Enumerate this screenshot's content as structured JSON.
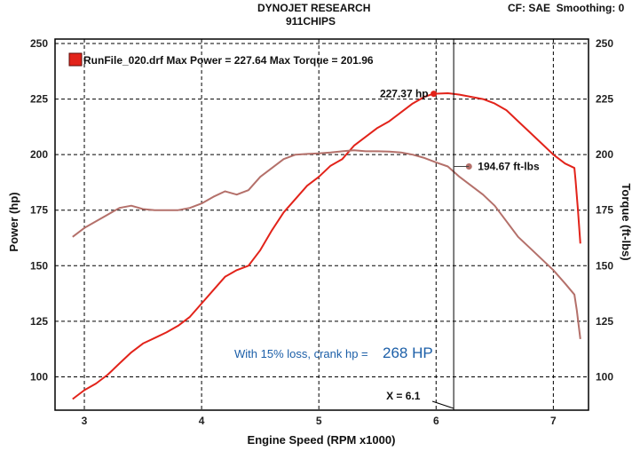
{
  "header": {
    "title": "DYNOJET RESEARCH",
    "subtitle": "911CHIPS",
    "settings": "CF: SAE  Smoothing: 0"
  },
  "chart_data": {
    "type": "line",
    "xlabel": "Engine Speed (RPM x1000)",
    "ylabel_left": "Power (hp)",
    "ylabel_right": "Torque (ft-lbs)",
    "xlim": [
      2.75,
      7.3
    ],
    "ylim": [
      85,
      252
    ],
    "x_ticks": [
      3,
      4,
      5,
      6,
      7
    ],
    "y_ticks": [
      100,
      125,
      150,
      175,
      200,
      225,
      250
    ],
    "grid": true,
    "legend": {
      "position": "top-left",
      "color": "#e2231a",
      "text": "RunFile_020.drf Max Power = 227.64 Max Torque = 201.96"
    },
    "series": [
      {
        "id": "power",
        "axis": "left",
        "color": "#e2231a",
        "points": [
          [
            2.9,
            90
          ],
          [
            3.0,
            94
          ],
          [
            3.1,
            97
          ],
          [
            3.2,
            101
          ],
          [
            3.3,
            106
          ],
          [
            3.4,
            111
          ],
          [
            3.5,
            115
          ],
          [
            3.6,
            117.5
          ],
          [
            3.7,
            120
          ],
          [
            3.8,
            123
          ],
          [
            3.9,
            127
          ],
          [
            4.0,
            133
          ],
          [
            4.1,
            139
          ],
          [
            4.2,
            145
          ],
          [
            4.3,
            148
          ],
          [
            4.4,
            150
          ],
          [
            4.5,
            157
          ],
          [
            4.6,
            166
          ],
          [
            4.7,
            174
          ],
          [
            4.8,
            180
          ],
          [
            4.9,
            186
          ],
          [
            5.0,
            190
          ],
          [
            5.1,
            195
          ],
          [
            5.2,
            198
          ],
          [
            5.3,
            204
          ],
          [
            5.4,
            208
          ],
          [
            5.5,
            212
          ],
          [
            5.6,
            215
          ],
          [
            5.7,
            219
          ],
          [
            5.8,
            223
          ],
          [
            5.9,
            226
          ],
          [
            5.98,
            227.4
          ],
          [
            6.1,
            227.64
          ],
          [
            6.2,
            227
          ],
          [
            6.3,
            226
          ],
          [
            6.4,
            225
          ],
          [
            6.5,
            223
          ],
          [
            6.6,
            220
          ],
          [
            6.7,
            215
          ],
          [
            6.8,
            210
          ],
          [
            6.9,
            205
          ],
          [
            7.0,
            200
          ],
          [
            7.1,
            196
          ],
          [
            7.18,
            194
          ],
          [
            7.19,
            188
          ],
          [
            7.21,
            175
          ],
          [
            7.23,
            160
          ]
        ]
      },
      {
        "id": "torque",
        "axis": "right",
        "color": "#b4706a",
        "points": [
          [
            2.9,
            163
          ],
          [
            3.0,
            167
          ],
          [
            3.1,
            170
          ],
          [
            3.2,
            173
          ],
          [
            3.3,
            176
          ],
          [
            3.4,
            177
          ],
          [
            3.5,
            175.5
          ],
          [
            3.6,
            175
          ],
          [
            3.7,
            175
          ],
          [
            3.8,
            175
          ],
          [
            3.9,
            176
          ],
          [
            4.0,
            178
          ],
          [
            4.1,
            181
          ],
          [
            4.2,
            183.5
          ],
          [
            4.3,
            182
          ],
          [
            4.4,
            184
          ],
          [
            4.5,
            190
          ],
          [
            4.6,
            194
          ],
          [
            4.7,
            198
          ],
          [
            4.8,
            200
          ],
          [
            4.9,
            200.3
          ],
          [
            5.0,
            200.6
          ],
          [
            5.1,
            201
          ],
          [
            5.2,
            201.5
          ],
          [
            5.3,
            201.96
          ],
          [
            5.4,
            201.5
          ],
          [
            5.5,
            201.5
          ],
          [
            5.6,
            201.4
          ],
          [
            5.7,
            201
          ],
          [
            5.8,
            200
          ],
          [
            5.9,
            198.5
          ],
          [
            6.0,
            196.5
          ],
          [
            6.1,
            194.67
          ],
          [
            6.2,
            190
          ],
          [
            6.3,
            186
          ],
          [
            6.4,
            182
          ],
          [
            6.5,
            177
          ],
          [
            6.6,
            170
          ],
          [
            6.7,
            163
          ],
          [
            6.8,
            158
          ],
          [
            6.9,
            153
          ],
          [
            7.0,
            148
          ],
          [
            7.1,
            142
          ],
          [
            7.18,
            137
          ],
          [
            7.2,
            130
          ],
          [
            7.23,
            117
          ]
        ]
      }
    ],
    "annotations": [
      {
        "series": "power",
        "x": 5.98,
        "y": 227.37,
        "label": "227.37 hp"
      },
      {
        "series": "torque",
        "x": 6.28,
        "y": 194.67,
        "label": "194.67 ft-lbs"
      }
    ],
    "cursor": {
      "x": 6.15,
      "label": "X = 6.1"
    },
    "note": {
      "prefix": "With 15% loss, crank hp = ",
      "value": "268 HP"
    }
  }
}
